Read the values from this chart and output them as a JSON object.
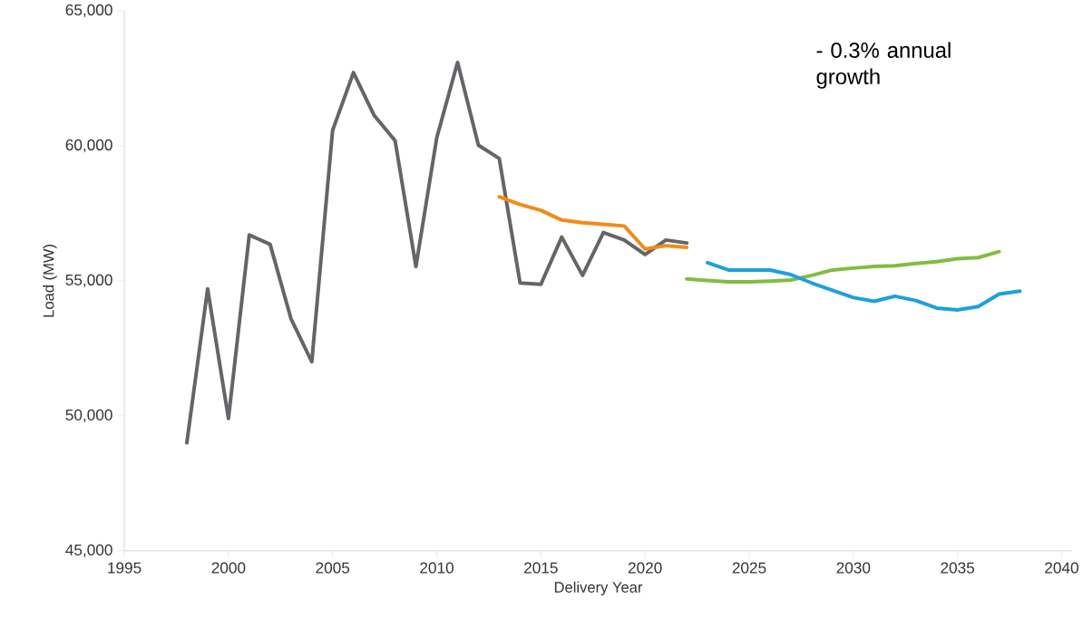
{
  "chart_data": {
    "type": "line",
    "xlabel": "Delivery Year",
    "ylabel": "Load (MW)",
    "annotations": [
      "- 0.3% annual growth"
    ],
    "xlim": [
      1995,
      2040.5
    ],
    "ylim": [
      45000,
      65000
    ],
    "xticks": [
      1995,
      2000,
      2005,
      2010,
      2015,
      2020,
      2025,
      2030,
      2035,
      2040
    ],
    "yticks": [
      {
        "value": 45000,
        "label": "45,000"
      },
      {
        "value": 50000,
        "label": "50,000"
      },
      {
        "value": 55000,
        "label": "55,000"
      },
      {
        "value": 60000,
        "label": "60,000"
      },
      {
        "value": 65000,
        "label": "65,000"
      }
    ],
    "line_style": "solid",
    "grid": false,
    "series": [
      {
        "color": "#646469",
        "x": [
          1998,
          1999,
          2000,
          2001,
          2002,
          2003,
          2004,
          2005,
          2006,
          2007,
          2008,
          2009,
          2010,
          2011,
          2012,
          2013,
          2014,
          2015,
          2016,
          2017,
          2018,
          2019,
          2020,
          2021,
          2022
        ],
        "values": [
          49000,
          54700,
          49900,
          56700,
          56350,
          53600,
          52000,
          60570,
          62710,
          61120,
          60190,
          55530,
          60300,
          63090,
          60020,
          59530,
          54920,
          54870,
          56620,
          55200,
          56790,
          56510,
          55970,
          56510,
          56400
        ]
      },
      {
        "color": "#f08c19",
        "x": [
          2013,
          2014,
          2015,
          2016,
          2017,
          2018,
          2019,
          2020,
          2021,
          2022
        ],
        "values": [
          58110,
          57830,
          57610,
          57250,
          57150,
          57090,
          57030,
          56180,
          56300,
          56240
        ]
      },
      {
        "color": "#82bc41",
        "x": [
          2022,
          2023,
          2024,
          2025,
          2026,
          2027,
          2028,
          2029,
          2030,
          2031,
          2032,
          2033,
          2034,
          2035,
          2036,
          2037
        ],
        "values": [
          55070,
          55010,
          54960,
          54960,
          54990,
          55030,
          55200,
          55400,
          55470,
          55530,
          55560,
          55640,
          55710,
          55820,
          55860,
          56080
        ]
      },
      {
        "color": "#1ea0dc",
        "x": [
          2023,
          2024,
          2025,
          2026,
          2027,
          2028,
          2029,
          2030,
          2031,
          2032,
          2033,
          2034,
          2035,
          2036,
          2037,
          2038
        ],
        "values": [
          55670,
          55400,
          55400,
          55400,
          55230,
          54920,
          54650,
          54380,
          54240,
          54430,
          54270,
          53990,
          53920,
          54050,
          54510,
          54620
        ]
      }
    ]
  }
}
